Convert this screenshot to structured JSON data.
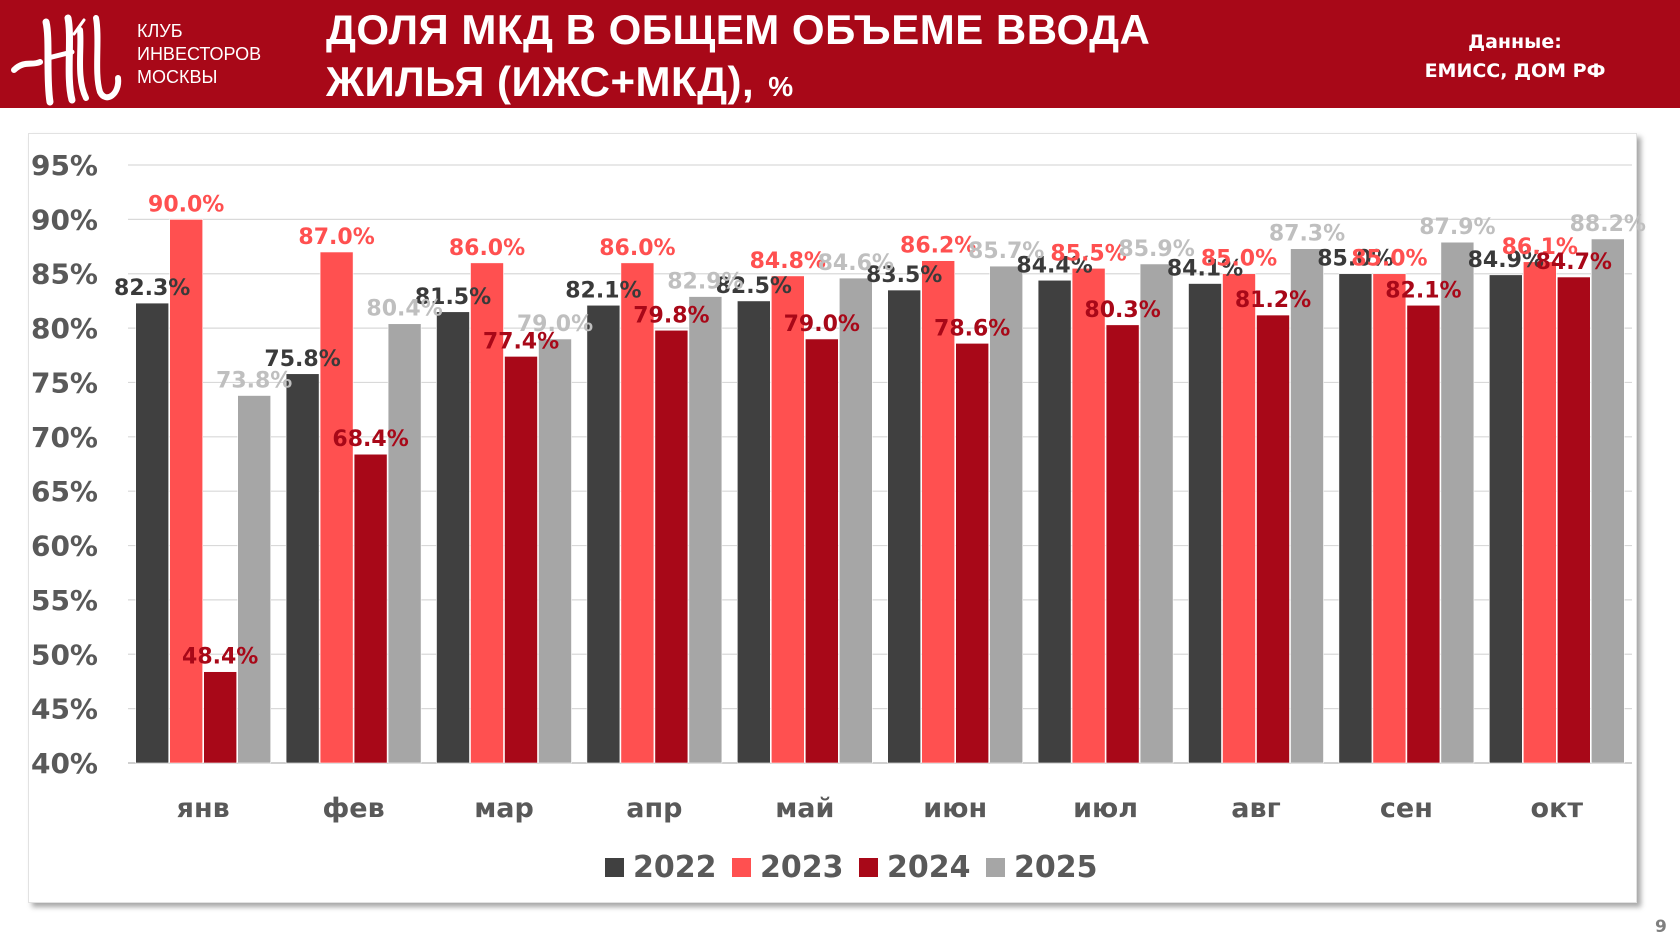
{
  "header": {
    "logo_icon": "club-monogram-logo-icon",
    "logo_lines": [
      "КЛУБ",
      "ИНВЕСТОРОВ",
      "МОСКВЫ"
    ],
    "title_line1": "ДОЛЯ МКД В ОБЩЕМ ОБЪЕМЕ ВВОДА",
    "title_line2": "ЖИЛЬЯ (ИЖС+МКД),",
    "title_unit": "%",
    "source_label": "Данные:",
    "source_value": "ЕМИСС, ДОМ РФ",
    "background_color": "#a80818"
  },
  "page_number": "9",
  "chart_data": {
    "type": "bar",
    "title": "ДОЛЯ МКД В ОБЩЕМ ОБЪЕМЕ ВВОДА ЖИЛЬЯ (ИЖС+МКД), %",
    "xlabel": "",
    "ylabel": "",
    "ylim": [
      40,
      95
    ],
    "yticks": [
      95,
      90,
      85,
      80,
      75,
      70,
      65,
      60,
      55,
      50,
      45,
      40
    ],
    "ytick_labels": [
      "95%",
      "90%",
      "85%",
      "80%",
      "75%",
      "70%",
      "65%",
      "60%",
      "55%",
      "50%",
      "45%",
      "40%"
    ],
    "grid": true,
    "legend_position": "bottom",
    "categories": [
      "янв",
      "фев",
      "мар",
      "апр",
      "май",
      "июн",
      "июл",
      "авг",
      "сен",
      "окт"
    ],
    "series": [
      {
        "name": "2022",
        "color": "#404040",
        "label_color": "#3a3a3a",
        "values": [
          82.3,
          75.8,
          81.5,
          82.1,
          82.5,
          83.5,
          84.4,
          84.1,
          85.0,
          84.9
        ],
        "labels": [
          "82.3%",
          "75.8%",
          "81.5%",
          "82.1%",
          "82.5%",
          "83.5%",
          "84.4%",
          "84.1%",
          "85.0%",
          "84.9%"
        ]
      },
      {
        "name": "2023",
        "color": "#ff5050",
        "label_color": "#ff5050",
        "values": [
          90.0,
          87.0,
          86.0,
          86.0,
          84.8,
          86.2,
          85.5,
          85.0,
          85.0,
          86.1
        ],
        "labels": [
          "90.0%",
          "87.0%",
          "86.0%",
          "86.0%",
          "84.8%",
          "86.2%",
          "85.5%",
          "85.0%",
          "85.0%",
          "86.1%"
        ]
      },
      {
        "name": "2024",
        "color": "#a80818",
        "label_color": "#a80818",
        "values": [
          48.4,
          68.4,
          77.4,
          79.8,
          79.0,
          78.6,
          80.3,
          81.2,
          82.1,
          84.7
        ],
        "labels": [
          "48.4%",
          "68.4%",
          "77.4%",
          "79.8%",
          "79.0%",
          "78.6%",
          "80.3%",
          "81.2%",
          "82.1%",
          "84.7%"
        ]
      },
      {
        "name": "2025",
        "color": "#a6a6a6",
        "label_color": "#bfbfbf",
        "values": [
          73.8,
          80.4,
          79.0,
          82.9,
          84.6,
          85.7,
          85.9,
          87.3,
          87.9,
          88.2
        ],
        "labels": [
          "73.8%",
          "80.4%",
          "79.0%",
          "82.9%",
          "84.6%",
          "85.7%",
          "85.9%",
          "87.3%",
          "87.9%",
          "88.2%"
        ]
      }
    ]
  }
}
